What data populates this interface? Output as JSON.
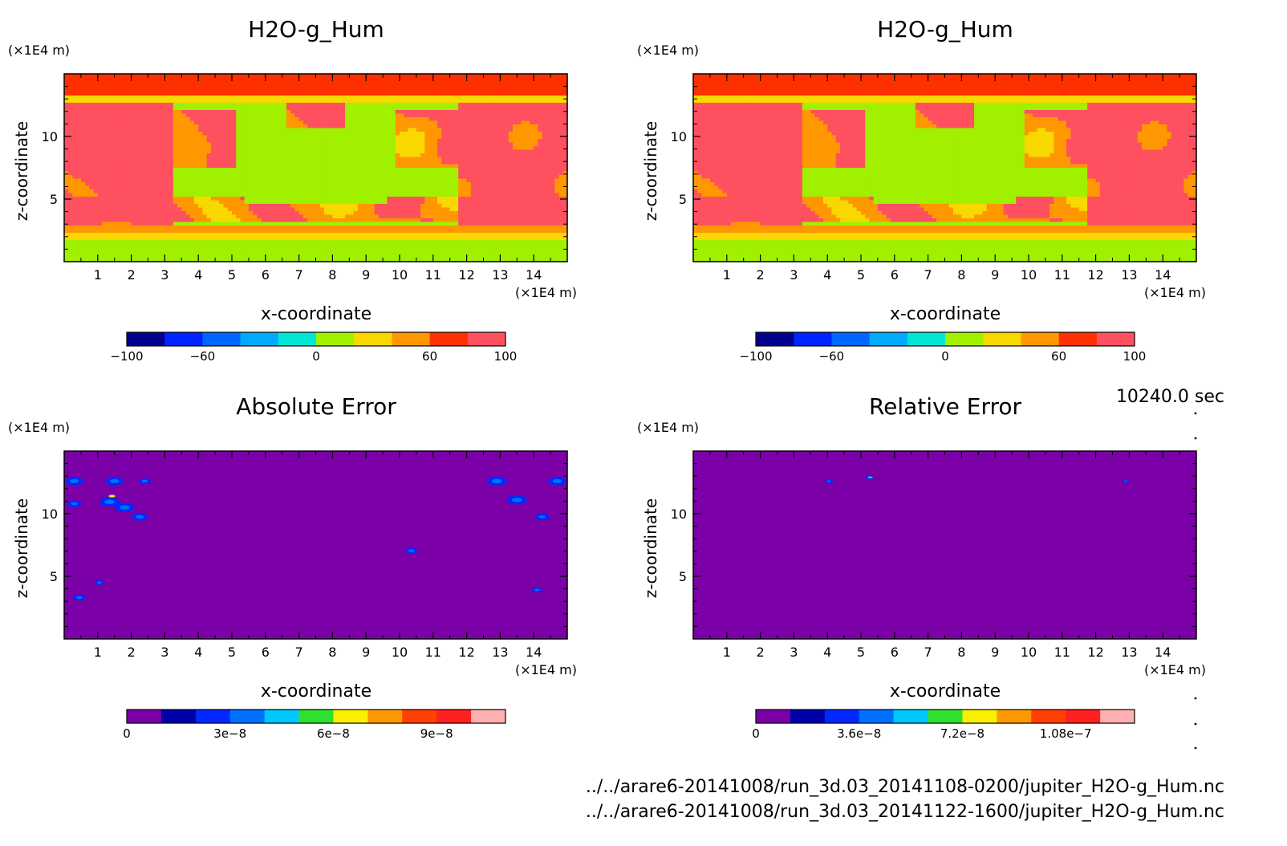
{
  "footer": {
    "time": "10240.0 sec",
    "files": [
      "../../arare6-20141008/run_3d.03_20141108-0200/jupiter_H2O-g_Hum.nc",
      "../../arare6-20141008/run_3d.03_20141122-1600/jupiter_H2O-g_Hum.nc"
    ]
  },
  "chart_data": [
    {
      "type": "heatmap",
      "title": "H2O-g_Hum",
      "xlabel": "x-coordinate",
      "ylabel": "z-coordinate",
      "x_unit": "(×1E4 m)",
      "y_unit": "(×1E4 m)",
      "xlim": [
        0,
        15
      ],
      "ylim": [
        0,
        15
      ],
      "xticks": [
        1,
        2,
        3,
        4,
        5,
        6,
        7,
        8,
        9,
        10,
        11,
        12,
        13,
        14
      ],
      "yticks": [
        5,
        10
      ],
      "colorbar": {
        "levels": [
          -100,
          -80,
          -60,
          -40,
          -20,
          0,
          20,
          40,
          60,
          80,
          100
        ],
        "tick_values": [
          -100,
          -60,
          0,
          60,
          100
        ],
        "tick_labels": [
          "−100",
          "−60",
          "0",
          "60",
          "100"
        ],
        "colors": [
          "#00008c",
          "#0024ff",
          "#0066ff",
          "#00aaff",
          "#00e6d2",
          "#a0f000",
          "#f8d800",
          "#ff9800",
          "#ff3000",
          "#ff5060"
        ]
      },
      "field": "humidity"
    },
    {
      "type": "heatmap",
      "title": "H2O-g_Hum",
      "xlabel": "x-coordinate",
      "ylabel": "z-coordinate",
      "x_unit": "(×1E4 m)",
      "y_unit": "(×1E4 m)",
      "xlim": [
        0,
        15
      ],
      "ylim": [
        0,
        15
      ],
      "xticks": [
        1,
        2,
        3,
        4,
        5,
        6,
        7,
        8,
        9,
        10,
        11,
        12,
        13,
        14
      ],
      "yticks": [
        5,
        10
      ],
      "colorbar": {
        "levels": [
          -100,
          -80,
          -60,
          -40,
          -20,
          0,
          20,
          40,
          60,
          80,
          100
        ],
        "tick_values": [
          -100,
          -60,
          0,
          60,
          100
        ],
        "tick_labels": [
          "−100",
          "−60",
          "0",
          "60",
          "100"
        ],
        "colors": [
          "#00008c",
          "#0024ff",
          "#0066ff",
          "#00aaff",
          "#00e6d2",
          "#a0f000",
          "#f8d800",
          "#ff9800",
          "#ff3000",
          "#ff5060"
        ]
      },
      "field": "humidity"
    },
    {
      "type": "heatmap",
      "title": "Absolute Error",
      "xlabel": "x-coordinate",
      "ylabel": "z-coordinate",
      "x_unit": "(×1E4 m)",
      "y_unit": "(×1E4 m)",
      "xlim": [
        0,
        15
      ],
      "ylim": [
        0,
        15
      ],
      "xticks": [
        1,
        2,
        3,
        4,
        5,
        6,
        7,
        8,
        9,
        10,
        11,
        12,
        13,
        14
      ],
      "yticks": [
        5,
        10
      ],
      "colorbar": {
        "levels": [
          0,
          1e-08,
          2e-08,
          3e-08,
          4e-08,
          5e-08,
          6e-08,
          7e-08,
          8e-08,
          9e-08,
          1e-07,
          1.1e-07
        ],
        "tick_values": [
          0,
          3e-08,
          6e-08,
          9e-08
        ],
        "tick_labels": [
          "0",
          "3e−8",
          "6e−8",
          "9e−8"
        ],
        "colors": [
          "#7b00a8",
          "#0000aa",
          "#0028ff",
          "#0070ff",
          "#00c8ff",
          "#30e030",
          "#f8f000",
          "#ff9800",
          "#ff4000",
          "#ff2020",
          "#ffb0b0"
        ]
      },
      "field": "abs_error"
    },
    {
      "type": "heatmap",
      "title": "Relative Error",
      "xlabel": "x-coordinate",
      "ylabel": "z-coordinate",
      "x_unit": "(×1E4 m)",
      "y_unit": "(×1E4 m)",
      "xlim": [
        0,
        15
      ],
      "ylim": [
        0,
        15
      ],
      "xticks": [
        1,
        2,
        3,
        4,
        5,
        6,
        7,
        8,
        9,
        10,
        11,
        12,
        13,
        14
      ],
      "yticks": [
        5,
        10
      ],
      "colorbar": {
        "levels": [
          0,
          1.2e-08,
          2.4e-08,
          3.6e-08,
          4.8e-08,
          6e-08,
          7.2e-08,
          8.4e-08,
          9.6e-08,
          1.08e-07,
          1.2e-07,
          1.32e-07
        ],
        "tick_values": [
          0,
          3.6e-08,
          7.2e-08,
          1.08e-07
        ],
        "tick_labels": [
          "0",
          "3.6e−8",
          "7.2e−8",
          "1.08e−7"
        ],
        "colors": [
          "#7b00a8",
          "#0000aa",
          "#0028ff",
          "#0070ff",
          "#00c8ff",
          "#30e030",
          "#f8f000",
          "#ff9800",
          "#ff4000",
          "#ff2020",
          "#ffb0b0"
        ]
      },
      "field": "rel_error"
    }
  ]
}
